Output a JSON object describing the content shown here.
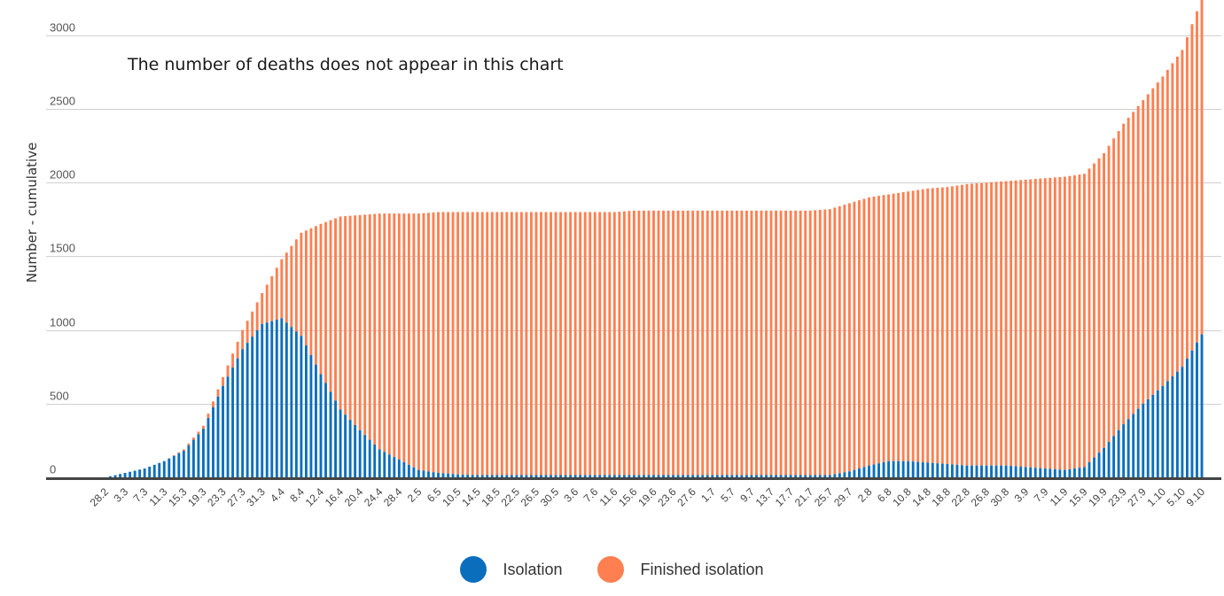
{
  "chart_data": {
    "type": "bar",
    "stacked": true,
    "ylabel": "Number - cumulative",
    "ylim": [
      0,
      3250
    ],
    "yticks": [
      0,
      500,
      1000,
      1500,
      2000,
      2500,
      3000
    ],
    "annotation": "The number of deaths does not appear in this chart",
    "x_tick_labels": [
      "28.2",
      "3.3",
      "7.3",
      "11.3",
      "15.3",
      "19.3",
      "23.3",
      "27.3",
      "31.3",
      "4.4",
      "8.4",
      "12.4",
      "16.4",
      "20.4",
      "24.4",
      "28.4",
      "2.5",
      "6.5",
      "10.5",
      "14.5",
      "18.5",
      "22.5",
      "26.5",
      "30.5",
      "3.6",
      "7.6",
      "11.6",
      "15.6",
      "19.6",
      "23.6",
      "27.6",
      "1.7",
      "5.7",
      "9.7",
      "13.7",
      "17.7",
      "21.7",
      "25.7",
      "29.7",
      "2.8",
      "6.8",
      "10.8",
      "14.8",
      "18.8",
      "22.8",
      "26.8",
      "30.8",
      "3.9",
      "7.9",
      "11.9",
      "15.9",
      "19.9",
      "23.9",
      "27.9",
      "1.10",
      "5.10",
      "9.10"
    ],
    "x_tick_every_days": 4,
    "first_date": "28.2",
    "last_date": "9.10",
    "grid": true,
    "legend_position": "bottom",
    "series": [
      {
        "name": "Isolation",
        "color": "#0a6ebd",
        "values_at_ticks": [
          0,
          30,
          60,
          110,
          180,
          330,
          620,
          870,
          1040,
          1080,
          960,
          700,
          460,
          320,
          190,
          120,
          50,
          30,
          20,
          15,
          15,
          15,
          15,
          15,
          15,
          15,
          15,
          15,
          15,
          15,
          15,
          15,
          15,
          15,
          15,
          15,
          15,
          15,
          40,
          80,
          110,
          110,
          100,
          90,
          80,
          80,
          80,
          70,
          60,
          50,
          70,
          200,
          360,
          500,
          620,
          750,
          970
        ]
      },
      {
        "name": "Finished isolation",
        "color": "#ff7f50",
        "total_at_ticks": [
          0,
          30,
          60,
          110,
          190,
          350,
          680,
          1000,
          1250,
          1480,
          1660,
          1720,
          1770,
          1780,
          1790,
          1790,
          1790,
          1800,
          1800,
          1800,
          1800,
          1800,
          1800,
          1800,
          1800,
          1800,
          1800,
          1810,
          1810,
          1810,
          1810,
          1810,
          1810,
          1810,
          1810,
          1810,
          1810,
          1820,
          1860,
          1900,
          1920,
          1940,
          1960,
          1970,
          1990,
          2000,
          2010,
          2020,
          2030,
          2040,
          2060,
          2200,
          2400,
          2560,
          2720,
          2900,
          3250
        ]
      }
    ]
  },
  "legend": {
    "items": [
      {
        "label": "Isolation",
        "color": "#0a6ebd"
      },
      {
        "label": "Finished isolation",
        "color": "#ff7f50"
      }
    ]
  }
}
